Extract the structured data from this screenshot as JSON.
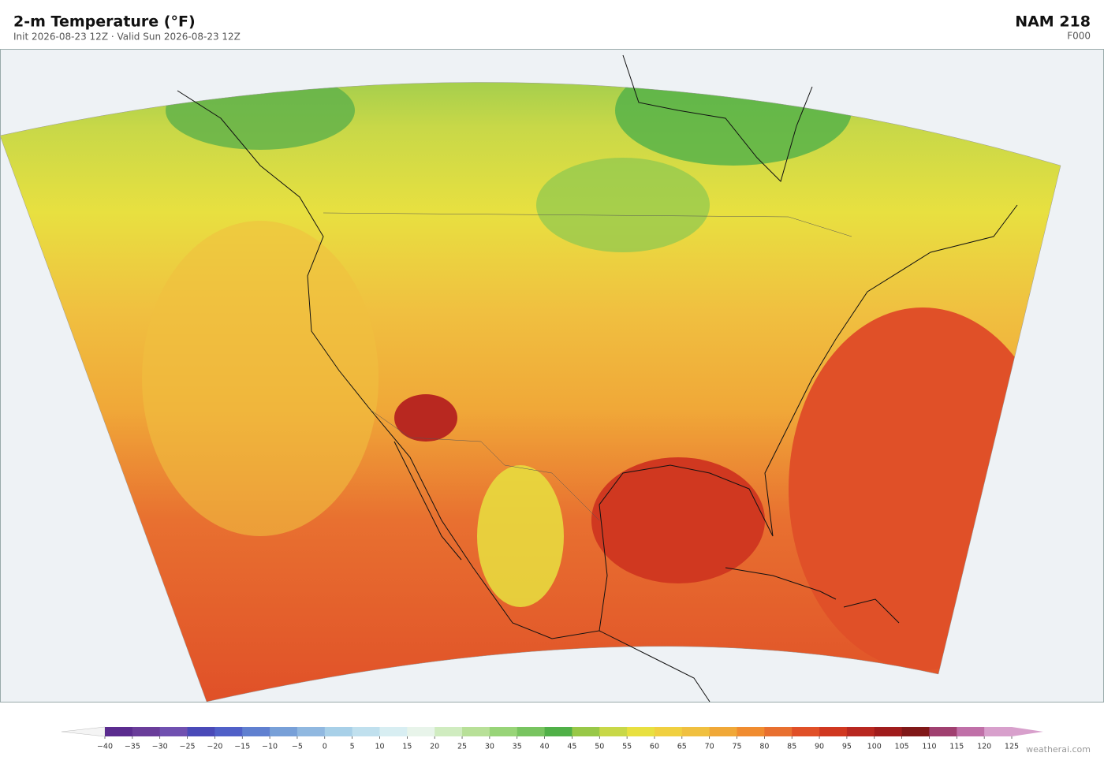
{
  "header": {
    "title": "2-m Temperature  (°F)",
    "subtitle": "Init 2026-08-23 12Z  ·  Valid Sun 2026-08-23 12Z",
    "model": "NAM  218",
    "forecast_hour": "F000"
  },
  "colorbar": {
    "ticks": [
      {
        "value": -40,
        "label": "−40"
      },
      {
        "value": -35,
        "label": "−35"
      },
      {
        "value": -30,
        "label": "−30"
      },
      {
        "value": -25,
        "label": "−25"
      },
      {
        "value": -20,
        "label": "−20"
      },
      {
        "value": -15,
        "label": "−15"
      },
      {
        "value": -10,
        "label": "−10"
      },
      {
        "value": -5,
        "label": "−5"
      },
      0,
      5,
      10,
      15,
      20,
      25,
      30,
      35,
      40,
      45,
      50,
      55,
      60,
      65,
      70,
      75,
      80,
      85,
      90,
      95,
      100,
      105,
      110,
      115,
      120,
      125
    ],
    "colors": [
      "#5b2c8f",
      "#6a3d9a",
      "#7050b0",
      "#4a4ab8",
      "#5060c8",
      "#6080d0",
      "#78a0d8",
      "#90b8e0",
      "#a8d0e8",
      "#c0e0ee",
      "#d8eef2",
      "#e8f4ea",
      "#d0ecc0",
      "#b8e098",
      "#98d478",
      "#78c460",
      "#50b048",
      "#98c848",
      "#c8d848",
      "#e8e040",
      "#f0d040",
      "#f0c040",
      "#f0a838",
      "#f08c30",
      "#e87030",
      "#e05028",
      "#d03820",
      "#b82820",
      "#a01c1c",
      "#801818",
      "#a04070",
      "#c070a8",
      "#d8a0cc"
    ],
    "under_color": "#f4f4f4",
    "over_color": "#d8a0cc"
  },
  "watermark": "weatherai.com"
}
